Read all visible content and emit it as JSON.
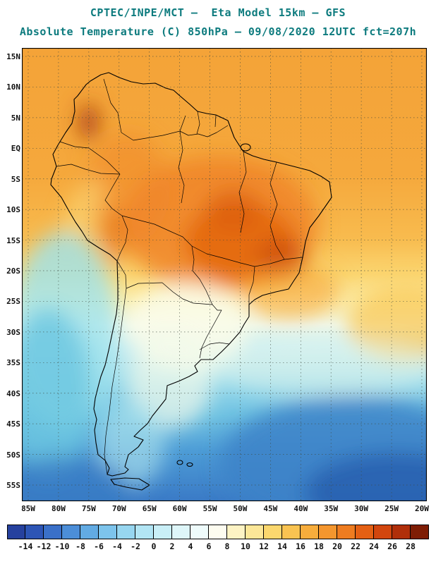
{
  "header": {
    "line1": "CPTEC/INPE/MCT –  Eta Model 15km – GFS",
    "line2": "Absolute Temperature (C) 850hPa – 09/08/2020 12UTC fct=207h",
    "title_color": "#0d7b7e"
  },
  "axes": {
    "lat_labels": [
      "15N",
      "10N",
      "5N",
      "EQ",
      "5S",
      "10S",
      "15S",
      "20S",
      "25S",
      "30S",
      "35S",
      "40S",
      "45S",
      "50S",
      "55S"
    ],
    "lon_labels": [
      "85W",
      "80W",
      "75W",
      "70W",
      "65W",
      "60W",
      "55W",
      "50W",
      "45W",
      "40W",
      "35W",
      "30W",
      "25W",
      "20W"
    ]
  },
  "colorbar": {
    "unit": "C",
    "labels": [
      "-14",
      "-12",
      "-10",
      "-8",
      "-6",
      "-4",
      "-2",
      "0",
      "2",
      "4",
      "6",
      "8",
      "10",
      "12",
      "14",
      "16",
      "18",
      "20",
      "22",
      "24",
      "26",
      "28"
    ],
    "colors": [
      "#26419e",
      "#2d55b5",
      "#3a70c8",
      "#4c8ed8",
      "#62abe3",
      "#7dc4ec",
      "#97d6f0",
      "#b2e5f4",
      "#c9eff7",
      "#def6f9",
      "#eefbfb",
      "#fdfcf0",
      "#fdf3c4",
      "#fce798",
      "#fbd76e",
      "#f9c351",
      "#f7ad3c",
      "#f4962e",
      "#ee7c20",
      "#e46014",
      "#d2460e",
      "#b02f0a",
      "#7e1d05"
    ]
  },
  "map_description": {
    "region": "South America",
    "field": "850hPa absolute temperature",
    "warm_core_color": "#e2640f",
    "cold_core_color": "#2b60b0"
  }
}
